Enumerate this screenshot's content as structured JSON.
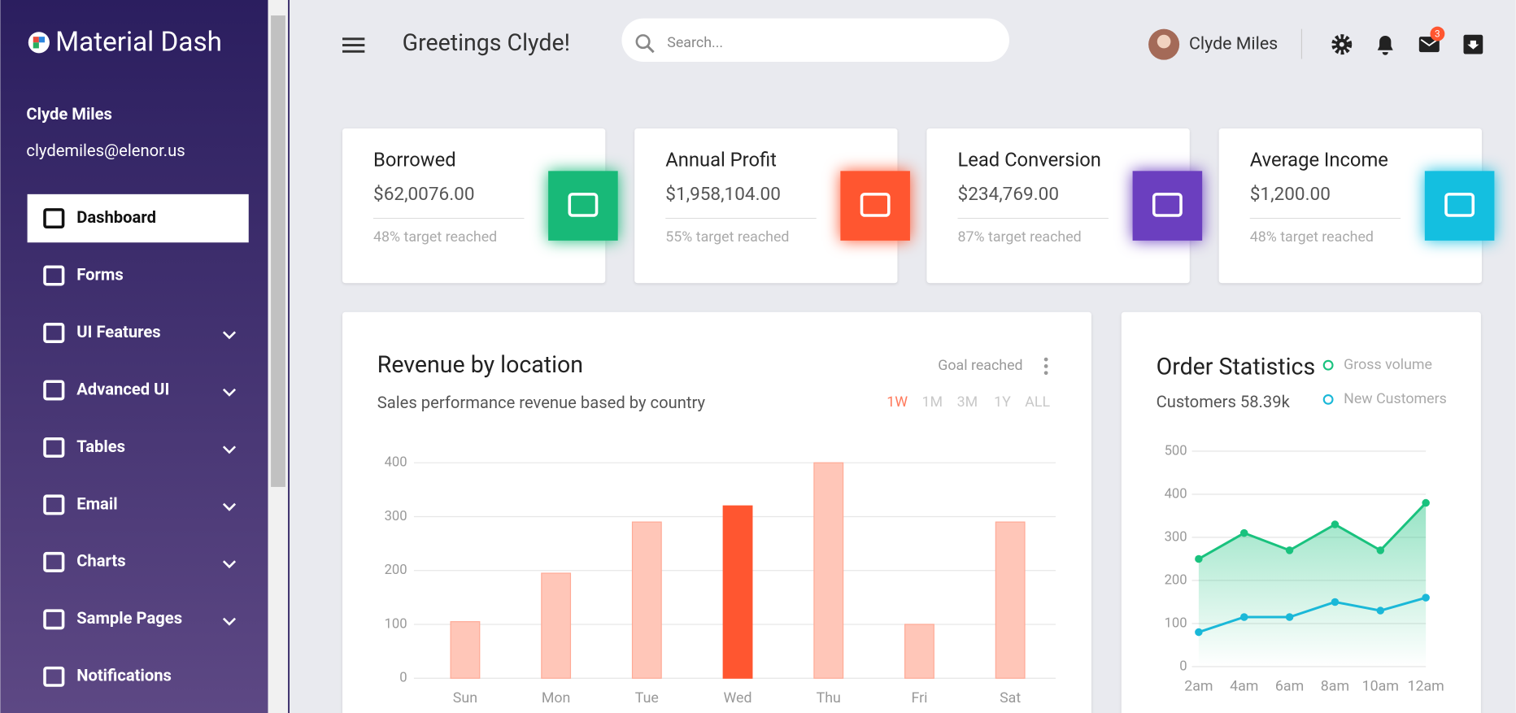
{
  "sidebar": {
    "brand": "Material Dash",
    "user_name": "Clyde Miles",
    "email": "clydemiles@elenor.us",
    "nav": [
      {
        "label": "Dashboard",
        "has_submenu": false
      },
      {
        "label": "Forms",
        "has_submenu": false
      },
      {
        "label": "UI Features",
        "has_submenu": true
      },
      {
        "label": "Advanced UI",
        "has_submenu": true
      },
      {
        "label": "Tables",
        "has_submenu": true
      },
      {
        "label": "Email",
        "has_submenu": true
      },
      {
        "label": "Charts",
        "has_submenu": true
      },
      {
        "label": "Sample Pages",
        "has_submenu": true
      },
      {
        "label": "Notifications",
        "has_submenu": false
      }
    ]
  },
  "header": {
    "greeting": "Greetings Clyde!",
    "search_placeholder": "Search...",
    "user_name": "Clyde Miles",
    "mail_count": "3"
  },
  "cards": [
    {
      "title": "Borrowed",
      "value": "$62,0076.00",
      "note": "48% target reached",
      "color": "#18b978"
    },
    {
      "title": "Annual Profit",
      "value": "$1,958,104.00",
      "note": "55% target reached",
      "color": "#ff5630"
    },
    {
      "title": "Lead Conversion",
      "value": "$234,769.00",
      "note": "87% target reached",
      "color": "#6b3fbf"
    },
    {
      "title": "Average Income",
      "value": "$1,200.00",
      "note": "48% target reached",
      "color": "#14bfe0"
    }
  ],
  "chart_data": [
    {
      "type": "bar",
      "title": "Revenue by location",
      "subtitle": "Sales performance revenue based by country",
      "goal_label": "Goal reached",
      "ranges": [
        "1W",
        "1M",
        "3M",
        "1Y",
        "ALL"
      ],
      "range_colors": [
        "#ff7a5c",
        "#c8c8c8",
        "#c8c8c8",
        "#c8c8c8",
        "#c8c8c8"
      ],
      "categories": [
        "Sun",
        "Mon",
        "Tue",
        "Wed",
        "Thu",
        "Fri",
        "Sat"
      ],
      "values": [
        105,
        195,
        290,
        320,
        400,
        100,
        290
      ],
      "colors": [
        "#ffc6b8",
        "#ffc6b8",
        "#ffc6b8",
        "#ff5630",
        "#ffc6b8",
        "#ffc6b8",
        "#ffc6b8"
      ],
      "ylim": [
        0,
        400
      ],
      "yticks": [
        0,
        100,
        200,
        300,
        400
      ],
      "grid": true
    },
    {
      "type": "line",
      "title": "Order Statistics",
      "subtitle": "Customers 58.39k",
      "categories": [
        "2am",
        "4am",
        "6am",
        "8am",
        "10am",
        "12am"
      ],
      "series": [
        {
          "name": "Gross volume",
          "color": "#19c27e",
          "values": [
            250,
            310,
            270,
            330,
            270,
            380
          ]
        },
        {
          "name": "New Customers",
          "color": "#1ab8d8",
          "values": [
            80,
            115,
            115,
            150,
            130,
            160
          ]
        }
      ],
      "ylim": [
        0,
        500
      ],
      "yticks": [
        0,
        100,
        200,
        300,
        400,
        500
      ],
      "grid": true
    }
  ]
}
